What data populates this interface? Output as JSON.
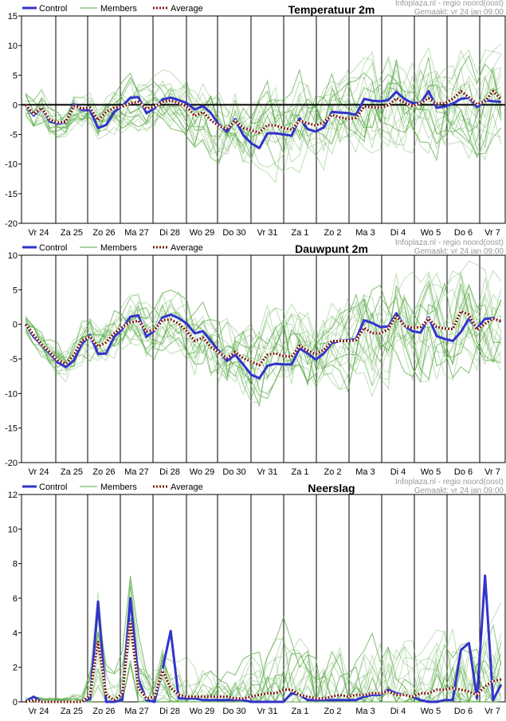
{
  "legend": {
    "control": "Control",
    "members": "Members",
    "average": "Average"
  },
  "credit": {
    "source": "Infoplaza.nl - regio noord(oost)",
    "made": "Gemaakt: vr 24 jan 09:00"
  },
  "colors": {
    "control": "#3333cc",
    "members": "#5aaa46",
    "average": "#7a1a10",
    "zero_line": "#000000",
    "grid": "#000000"
  },
  "days": [
    "Vr 24",
    "Za 25",
    "Zo 26",
    "Ma 27",
    "Di 28",
    "Wo 29",
    "Do 30",
    "Vr 31",
    "Za 1",
    "Zo 2",
    "Ma 3",
    "Di 4",
    "Wo 5",
    "Do 6",
    "Vr 7"
  ],
  "chart_data": [
    {
      "type": "line",
      "title": "Temperatuur 2m",
      "ylim": [
        -20,
        15
      ],
      "yticks": [
        15,
        10,
        5,
        0,
        -5,
        -10,
        -15,
        -20
      ],
      "zero_line": true,
      "x_steps": 60,
      "control": [
        0,
        -1.8,
        -0.5,
        -2.8,
        -3.2,
        -2.9,
        0.1,
        -0.9,
        -0.9,
        -3.9,
        -3.4,
        -1.2,
        -0.2,
        1.2,
        1.3,
        -1.4,
        -0.6,
        0.9,
        1.2,
        0.8,
        0.3,
        -0.8,
        -0.2,
        -1.4,
        -3.4,
        -4.5,
        -2.4,
        -5.1,
        -6.5,
        -7.3,
        -4.8,
        -4.8,
        -5,
        -5.2,
        -2.3,
        -4.1,
        -4.5,
        -3.8,
        -1.2,
        -1.3,
        -1.4,
        -1.7,
        1,
        0.7,
        0.6,
        0.8,
        2.2,
        1,
        0.3,
        0.3,
        2.3,
        -0.5,
        -0.3,
        0.2,
        1,
        1.2,
        -0.4,
        0.8,
        0.6,
        0.5
      ],
      "average": [
        0,
        -1.5,
        -0.5,
        -2.5,
        -3,
        -2.8,
        -0.2,
        -0.6,
        -0.5,
        -2.6,
        -1.2,
        -0.5,
        -0.3,
        0.3,
        0.5,
        -0.6,
        -0.3,
        0.5,
        0.7,
        0.3,
        -0.3,
        -1.9,
        -1.2,
        -2.6,
        -3.6,
        -4,
        -2.7,
        -3.9,
        -4.3,
        -4.7,
        -3.4,
        -3.5,
        -3.9,
        -4.2,
        -2.7,
        -3.1,
        -3.5,
        -2.9,
        -1.7,
        -2.1,
        -2.4,
        -2.2,
        -0.3,
        -0.4,
        -0.5,
        -0.1,
        1.1,
        0.4,
        -0.2,
        0.3,
        1.1,
        0.2,
        0.3,
        1,
        2.3,
        1.3,
        0.1,
        0.6,
        2.3,
        0.9
      ],
      "members_spread": [
        2.5,
        2.5,
        2.5,
        3,
        2,
        2,
        3,
        2.5,
        2.5,
        3,
        3.5,
        3.5,
        4,
        4,
        4,
        3.5,
        4,
        4,
        4,
        4,
        4.5,
        4.5,
        5,
        5,
        5,
        5,
        5.5,
        5.5,
        5.5,
        6,
        6,
        6.5,
        6.5,
        6.5,
        6.5,
        6.5,
        6.5,
        6.5,
        6.5,
        6.5,
        6.5,
        6.5,
        6.5,
        7,
        7,
        7,
        7,
        7,
        7,
        7,
        7,
        7,
        7,
        7,
        7,
        7,
        7,
        7,
        7,
        7
      ]
    },
    {
      "type": "line",
      "title": "Dauwpunt 2m",
      "ylim": [
        -20,
        10
      ],
      "yticks": [
        10,
        5,
        0,
        -5,
        -10,
        -15,
        -20
      ],
      "zero_line": false,
      "x_steps": 60,
      "control": [
        0,
        -1.8,
        -3,
        -4.2,
        -5.5,
        -6.2,
        -5.2,
        -2.8,
        -1.6,
        -4.3,
        -4.2,
        -1.8,
        -0.7,
        1.1,
        1.3,
        -1.8,
        -0.9,
        1,
        1.4,
        0.9,
        0.1,
        -1.3,
        -1,
        -2.4,
        -3.9,
        -5.3,
        -4.4,
        -5.8,
        -7.3,
        -7.8,
        -6,
        -5.7,
        -5.8,
        -5.8,
        -3.5,
        -4.2,
        -5.1,
        -4.2,
        -2.7,
        -2.4,
        -2.3,
        -2.1,
        0.6,
        0.2,
        -0.4,
        -0.3,
        1.6,
        -0.2,
        -1,
        -1.2,
        1,
        -1.7,
        -2.1,
        -2.4,
        -1.1,
        0.8,
        -0.6,
        0.8,
        0.9,
        0.4
      ],
      "average": [
        0,
        -1.5,
        -2.9,
        -4,
        -5.2,
        -5.7,
        -4.4,
        -2.3,
        -1.8,
        -3.2,
        -2.6,
        -1.3,
        -0.4,
        0.3,
        0.5,
        -1,
        -0.8,
        0.6,
        0.7,
        0.1,
        -1,
        -2.4,
        -1.9,
        -3.3,
        -4.1,
        -4.9,
        -4,
        -4.9,
        -5.4,
        -5.9,
        -4.4,
        -4.2,
        -4.6,
        -4.7,
        -3.1,
        -3.8,
        -4.3,
        -3.7,
        -2.4,
        -2.4,
        -2.4,
        -2.3,
        -0.5,
        -1.3,
        -1.3,
        -0.7,
        1.2,
        -0.2,
        -0.5,
        -0.4,
        0.8,
        -0.4,
        -0.6,
        -0.7,
        1.9,
        1.4,
        -0.8,
        0.1,
        0.8,
        0.5
      ],
      "members_spread": [
        1.5,
        1.5,
        1.5,
        2,
        2,
        2,
        2.5,
        3,
        3,
        3,
        3.5,
        3.5,
        3.5,
        3.5,
        3.5,
        3.5,
        4,
        4,
        4,
        4,
        4.5,
        4.5,
        4.5,
        5,
        5,
        5,
        5,
        5.5,
        5.5,
        5.5,
        6,
        6,
        6,
        6,
        6,
        6,
        6,
        6,
        6,
        6,
        6,
        6,
        6.5,
        6.5,
        6.5,
        6.5,
        6.5,
        6.5,
        6.5,
        6.5,
        6.5,
        6.5,
        6.5,
        6.5,
        6.5,
        6.5,
        6.5,
        6.5,
        6.5,
        6.5
      ]
    },
    {
      "type": "line",
      "title": "Neerslag",
      "ylim": [
        0,
        12
      ],
      "yticks": [
        12,
        10,
        8,
        6,
        4,
        2,
        0
      ],
      "zero_line": false,
      "x_steps": 60,
      "control": [
        0,
        0.3,
        0,
        0,
        0,
        0,
        0,
        0,
        0.2,
        5.8,
        0,
        0,
        0.1,
        6,
        1.3,
        0.1,
        0,
        1.9,
        4.1,
        0.2,
        0.2,
        0.2,
        0.1,
        0.1,
        0.1,
        0.1,
        0.1,
        0.1,
        0,
        0,
        0,
        0,
        0,
        0.5,
        0.4,
        0.1,
        0.1,
        0.1,
        0.1,
        0.1,
        0.1,
        0.1,
        0.3,
        0.4,
        0.4,
        0.7,
        0.5,
        0.4,
        0.3,
        0.1,
        0,
        0,
        0.1,
        0.1,
        3,
        3.4,
        0.2,
        7.3,
        0.1,
        1
      ],
      "average": [
        0,
        0.1,
        0,
        0,
        0,
        0,
        0,
        0,
        0.4,
        3.5,
        0.4,
        0.1,
        0.5,
        4.6,
        0.8,
        0.2,
        0.3,
        1.8,
        0.8,
        0.4,
        0.3,
        0.3,
        0.3,
        0.3,
        0.3,
        0.3,
        0.2,
        0.2,
        0.3,
        0.4,
        0.5,
        0.5,
        0.7,
        0.7,
        0.4,
        0.3,
        0.2,
        0.2,
        0.3,
        0.4,
        0.3,
        0.4,
        0.4,
        0.5,
        0.5,
        0.6,
        0.4,
        0.4,
        0.3,
        0.5,
        0.5,
        0.7,
        0.7,
        0.8,
        0.7,
        0.6,
        0.4,
        0.9,
        1.2,
        1.3
      ],
      "members_spread": [
        0.3,
        0.3,
        0.2,
        0.2,
        0.2,
        0.2,
        0.5,
        1,
        2,
        3,
        1.5,
        1,
        2,
        3,
        2,
        1.5,
        1.5,
        2,
        2,
        1.5,
        1.5,
        1.5,
        1.5,
        1.5,
        1.5,
        1.5,
        1.5,
        2,
        2,
        2,
        2.5,
        2.5,
        3,
        3,
        2.5,
        2.5,
        2.5,
        2.5,
        2.5,
        2.5,
        2.5,
        2.5,
        2.5,
        3,
        3,
        3,
        3,
        2.5,
        2.5,
        2.5,
        2.5,
        3,
        3,
        3,
        3,
        3,
        3,
        3,
        3,
        3
      ]
    }
  ]
}
